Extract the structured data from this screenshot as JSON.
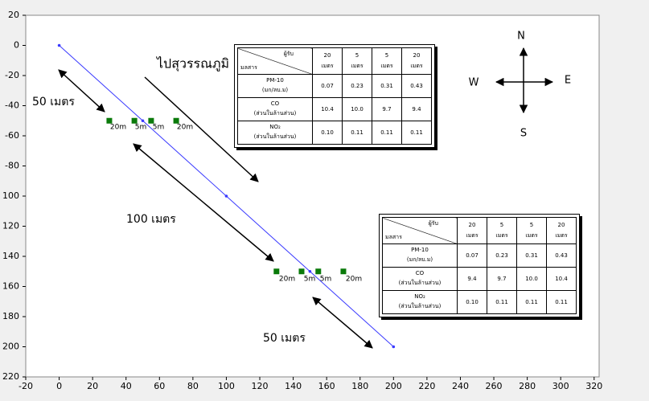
{
  "chart_data": {
    "type": "scatter",
    "xlim": [
      -20,
      323
    ],
    "ylim": [
      -220,
      20
    ],
    "xticks": [
      -20,
      0,
      20,
      40,
      60,
      80,
      100,
      120,
      140,
      160,
      180,
      200,
      220,
      240,
      260,
      280,
      300,
      320
    ],
    "yticks": [
      20,
      0,
      -20,
      -40,
      -60,
      -80,
      {
        "value": -100,
        "label": "100"
      },
      {
        "value": -120,
        "label": "120"
      },
      {
        "value": -140,
        "label": "140"
      },
      {
        "value": -160,
        "label": "160"
      },
      {
        "value": -180,
        "label": "180"
      },
      {
        "value": -200,
        "label": "200"
      },
      {
        "value": -220,
        "label": "220"
      }
    ],
    "series": [
      {
        "mode": "line",
        "color": "#3a3aff",
        "x": [
          0,
          50,
          100,
          150,
          200
        ],
        "values": [
          0,
          -50,
          -100,
          -150,
          -200
        ]
      },
      {
        "mode": "marker",
        "color": "#0a7a0a",
        "x": [
          30,
          45,
          55,
          70,
          130,
          145,
          155,
          170
        ],
        "values": [
          -50,
          -50,
          -50,
          -50,
          -150,
          -150,
          -150,
          -150
        ]
      }
    ],
    "annotations": [
      "ไปสุวรรณภูมิ",
      "50 เมตร",
      "100 เมตร",
      "50 เมตร"
    ],
    "distance_labels": [
      [
        "20m",
        "5m",
        "5m",
        "20m"
      ],
      [
        "20m",
        "5m",
        "5m",
        "20m"
      ]
    ],
    "compass": [
      "N",
      "E",
      "S",
      "W"
    ],
    "tables": [
      {
        "corner_top": "ผู้รับ",
        "corner_bottom": "มลสาร",
        "columns": [
          [
            "20",
            "เมตร"
          ],
          [
            "5",
            "เมตร"
          ],
          [
            "5",
            "เมตร"
          ],
          [
            "20",
            "เมตร"
          ]
        ],
        "rows": [
          {
            "label": [
              "PM-10",
              "(มก/ลบ.ม)"
            ],
            "cells": [
              "0.07",
              "0.23",
              "0.31",
              "0.43"
            ]
          },
          {
            "label": [
              "CO",
              "(ส่วนในล้านส่วน)"
            ],
            "cells": [
              "10.4",
              "10.0",
              "9.7",
              "9.4"
            ]
          },
          {
            "label": [
              "NO₂",
              "(ส่วนในล้านส่วน)"
            ],
            "cells": [
              "0.10",
              "0.11",
              "0.11",
              "0.11"
            ]
          }
        ]
      },
      {
        "corner_top": "ผู้รับ",
        "corner_bottom": "มลสาร",
        "columns": [
          [
            "20",
            "เมตร"
          ],
          [
            "5",
            "เมตร"
          ],
          [
            "5",
            "เมตร"
          ],
          [
            "20",
            "เมตร"
          ]
        ],
        "rows": [
          {
            "label": [
              "PM-10",
              "(มก/ลบ.ม)"
            ],
            "cells": [
              "0.07",
              "0.23",
              "0.31",
              "0.43"
            ]
          },
          {
            "label": [
              "CO",
              "(ส่วนในล้านส่วน)"
            ],
            "cells": [
              "9.4",
              "9.7",
              "10.0",
              "10.4"
            ]
          },
          {
            "label": [
              "NO₂",
              "(ส่วนในล้านส่วน)"
            ],
            "cells": [
              "0.10",
              "0.11",
              "0.11",
              "0.11"
            ]
          }
        ]
      }
    ]
  }
}
